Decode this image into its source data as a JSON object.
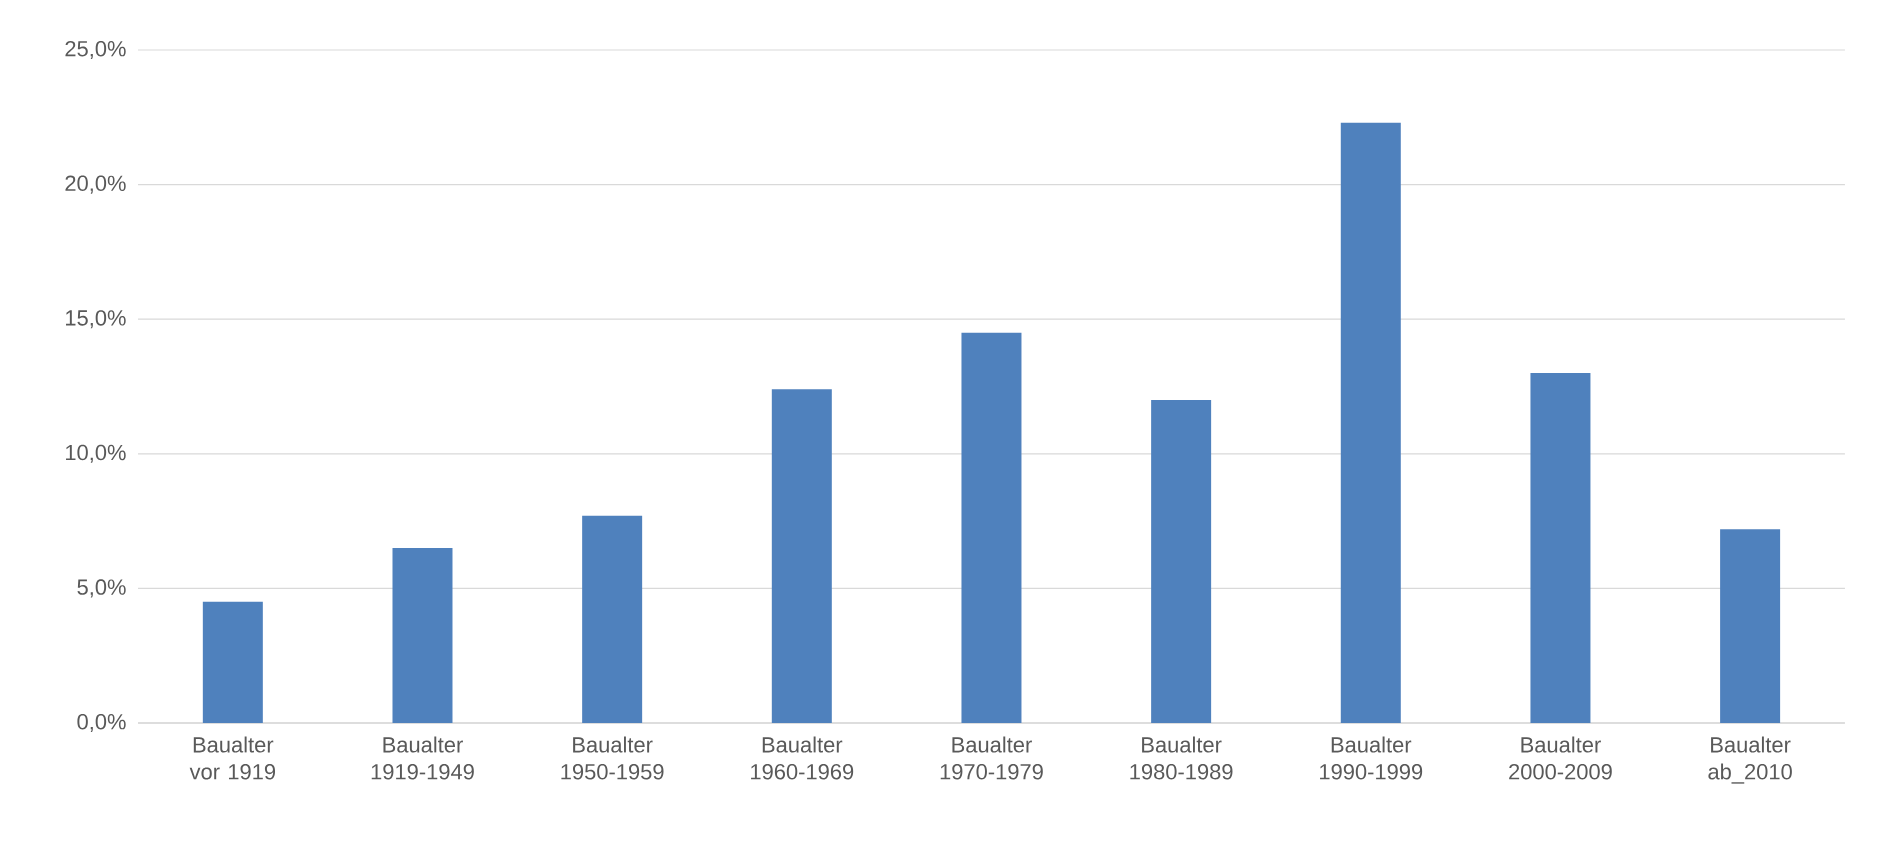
{
  "chart_data": {
    "type": "bar",
    "categories": [
      "Baualter vor 1919",
      "Baualter 1919-1949",
      "Baualter 1950-1959",
      "Baualter 1960-1969",
      "Baualter 1970-1979",
      "Baualter 1980-1989",
      "Baualter 1990-1999",
      "Baualter 2000-2009",
      "Baualter ab_2010"
    ],
    "values": [
      4.5,
      6.5,
      7.7,
      12.4,
      14.5,
      12.0,
      22.3,
      13.0,
      7.2
    ],
    "color": "#4f81bd",
    "ylim": [
      0,
      25
    ],
    "yticks": [
      {
        "value": 0,
        "label": "0,0%"
      },
      {
        "value": 5,
        "label": "5,0%"
      },
      {
        "value": 10,
        "label": "10,0%"
      },
      {
        "value": 15,
        "label": "15,0%"
      },
      {
        "value": 20,
        "label": "20,0%"
      },
      {
        "value": 25,
        "label": "25,0%"
      }
    ],
    "grid": "y"
  }
}
